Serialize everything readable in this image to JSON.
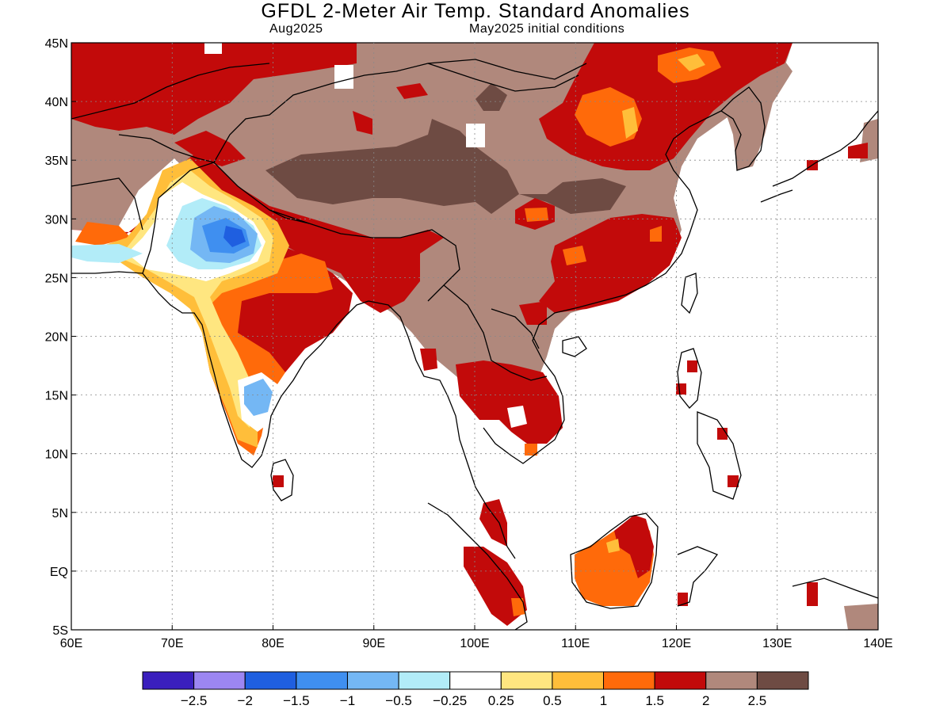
{
  "header": {
    "title": "GFDL 2-Meter Air Temp. Standard Anomalies",
    "valid_month": "Aug2025",
    "init": "May2025 initial conditions"
  },
  "map": {
    "lon_range": [
      60,
      140
    ],
    "lat_range": [
      -5,
      45
    ],
    "x_ticks": [
      "60E",
      "70E",
      "80E",
      "90E",
      "100E",
      "110E",
      "120E",
      "130E",
      "140E"
    ],
    "y_ticks": [
      "45N",
      "40N",
      "35N",
      "30N",
      "25N",
      "20N",
      "15N",
      "10N",
      "5N",
      "EQ",
      "5S"
    ]
  },
  "colorbar": {
    "colors": [
      "#3a1fbd",
      "#9c86f2",
      "#1f5fe0",
      "#3f8ff0",
      "#74b7f4",
      "#b2ecf8",
      "#ffffff",
      "#ffe680",
      "#ffbe3a",
      "#ff6a0a",
      "#c20a0a",
      "#b0887c",
      "#6e4b43"
    ],
    "labels": [
      "-2.5",
      "-2",
      "-1.5",
      "-1",
      "-0.5",
      "-0.25",
      "0.25",
      "0.5",
      "1",
      "1.5",
      "2",
      "2.5"
    ]
  }
}
